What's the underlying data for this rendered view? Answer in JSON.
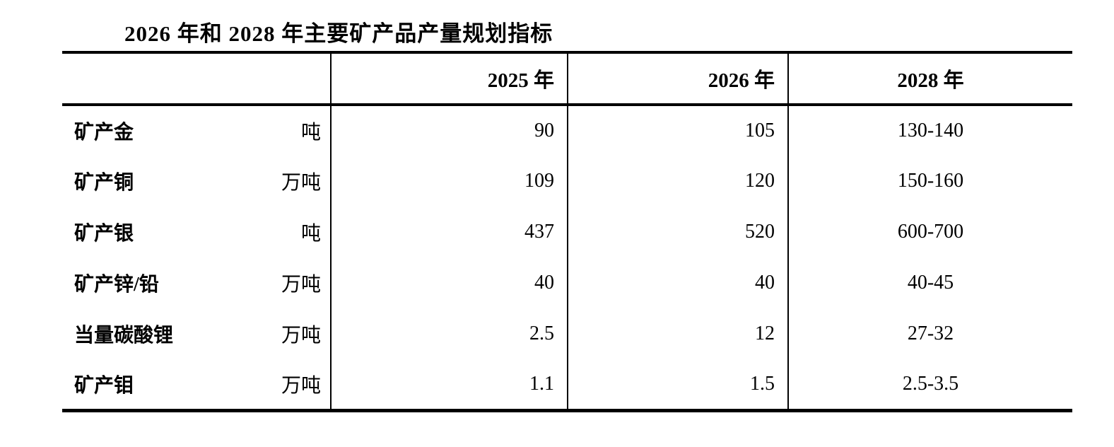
{
  "title": "2026 年和 2028 年主要矿产品产量规划指标",
  "table": {
    "columns": [
      "",
      "2025 年",
      "2026 年",
      "2028 年"
    ],
    "rows": [
      {
        "name": "矿产金",
        "unit": "吨",
        "y2025": "90",
        "y2026": "105",
        "y2028": "130-140"
      },
      {
        "name": "矿产铜",
        "unit": "万吨",
        "y2025": "109",
        "y2026": "120",
        "y2028": "150-160"
      },
      {
        "name": "矿产银",
        "unit": "吨",
        "y2025": "437",
        "y2026": "520",
        "y2028": "600-700"
      },
      {
        "name": "矿产锌/铅",
        "unit": "万吨",
        "y2025": "40",
        "y2026": "40",
        "y2028": "40-45"
      },
      {
        "name": "当量碳酸锂",
        "unit": "万吨",
        "y2025": "2.5",
        "y2026": "12",
        "y2028": "27-32"
      },
      {
        "name": "矿产钼",
        "unit": "万吨",
        "y2025": "1.1",
        "y2026": "1.5",
        "y2028": "2.5-3.5"
      }
    ]
  },
  "colors": {
    "background": "#ffffff",
    "text": "#000000",
    "border": "#000000"
  }
}
